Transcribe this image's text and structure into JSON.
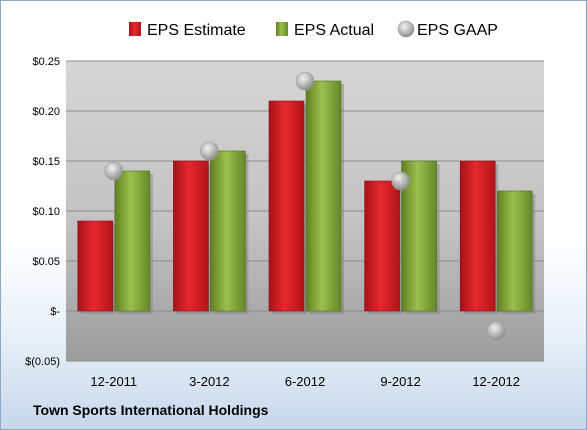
{
  "company_name": "Town Sports International Holdings",
  "chart_data": {
    "type": "bar",
    "categories": [
      "12-2011",
      "3-2012",
      "6-2012",
      "9-2012",
      "12-2012"
    ],
    "series": [
      {
        "name": "EPS Estimate",
        "type": "bar",
        "values": [
          0.09,
          0.15,
          0.21,
          0.13,
          0.15
        ],
        "color": "#d42025"
      },
      {
        "name": "EPS Actual",
        "type": "bar",
        "values": [
          0.14,
          0.16,
          0.23,
          0.15,
          0.12
        ],
        "color": "#8db040"
      },
      {
        "name": "EPS GAAP",
        "type": "scatter",
        "values": [
          0.14,
          0.16,
          0.23,
          0.13,
          -0.02
        ],
        "color": "#bfbfbf"
      }
    ],
    "ylim": [
      -0.05,
      0.25
    ],
    "y_ticks": [
      {
        "value": -0.05,
        "label": "$(0.05)"
      },
      {
        "value": 0.0,
        "label": "$-"
      },
      {
        "value": 0.05,
        "label": "$0.05"
      },
      {
        "value": 0.1,
        "label": "$0.10"
      },
      {
        "value": 0.15,
        "label": "$0.15"
      },
      {
        "value": 0.2,
        "label": "$0.20"
      },
      {
        "value": 0.25,
        "label": "$0.25"
      }
    ],
    "legend_position": "top",
    "grid": true,
    "title": "",
    "xlabel": "",
    "ylabel": ""
  }
}
